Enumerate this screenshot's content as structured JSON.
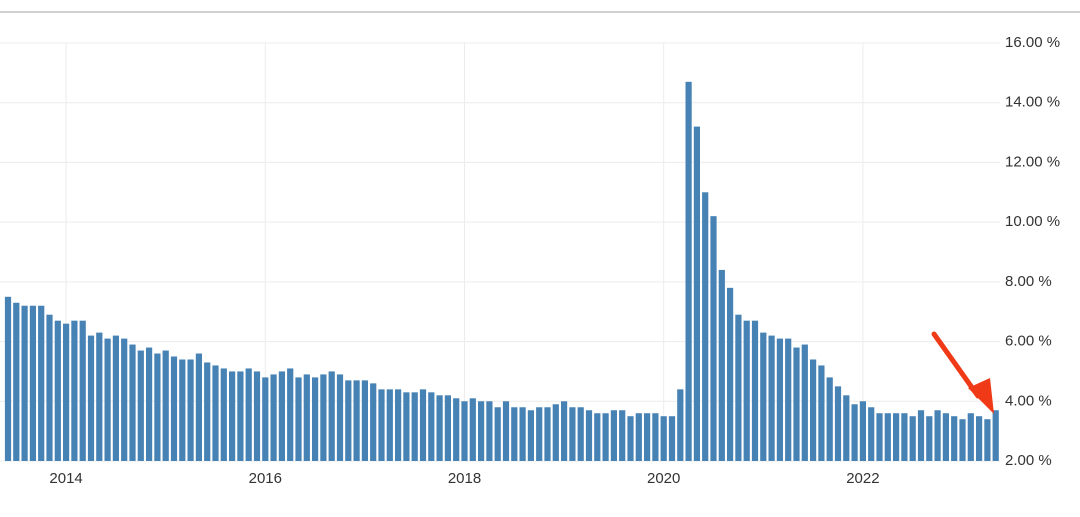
{
  "chart_data": {
    "type": "bar",
    "color": "#4682b4",
    "grid": true,
    "categories": [
      null,
      null,
      null,
      null,
      null,
      null,
      null,
      "2014",
      null,
      null,
      null,
      null,
      null,
      null,
      null,
      null,
      null,
      null,
      null,
      null,
      null,
      null,
      null,
      null,
      null,
      null,
      null,
      null,
      null,
      null,
      null,
      "2016",
      null,
      null,
      null,
      null,
      null,
      null,
      null,
      null,
      null,
      null,
      null,
      null,
      null,
      null,
      null,
      null,
      null,
      null,
      null,
      null,
      null,
      null,
      null,
      "2018",
      null,
      null,
      null,
      null,
      null,
      null,
      null,
      null,
      null,
      null,
      null,
      null,
      null,
      null,
      null,
      null,
      null,
      null,
      null,
      null,
      null,
      null,
      null,
      "2020",
      null,
      null,
      null,
      null,
      null,
      null,
      null,
      null,
      null,
      null,
      null,
      null,
      null,
      null,
      null,
      null,
      null,
      null,
      null,
      null,
      null,
      null,
      null,
      "2022",
      null,
      null,
      null,
      null,
      null,
      null,
      null,
      null,
      null,
      null,
      null,
      null,
      null,
      null,
      null,
      null
    ],
    "values": [
      7.5,
      7.3,
      7.2,
      7.2,
      7.2,
      6.9,
      6.7,
      6.6,
      6.7,
      6.7,
      6.2,
      6.3,
      6.1,
      6.2,
      6.1,
      5.9,
      5.7,
      5.8,
      5.6,
      5.7,
      5.5,
      5.4,
      5.4,
      5.6,
      5.3,
      5.2,
      5.1,
      5.0,
      5.0,
      5.1,
      5.0,
      4.8,
      4.9,
      5.0,
      5.1,
      4.8,
      4.9,
      4.8,
      4.9,
      5.0,
      4.9,
      4.7,
      4.7,
      4.7,
      4.6,
      4.4,
      4.4,
      4.4,
      4.3,
      4.3,
      4.4,
      4.3,
      4.2,
      4.2,
      4.1,
      4.0,
      4.1,
      4.0,
      4.0,
      3.8,
      4.0,
      3.8,
      3.8,
      3.7,
      3.8,
      3.8,
      3.9,
      4.0,
      3.8,
      3.8,
      3.7,
      3.6,
      3.6,
      3.7,
      3.7,
      3.5,
      3.6,
      3.6,
      3.6,
      3.5,
      3.5,
      4.4,
      14.7,
      13.2,
      11.0,
      10.2,
      8.4,
      7.8,
      6.9,
      6.7,
      6.7,
      6.3,
      6.2,
      6.1,
      6.1,
      5.8,
      5.9,
      5.4,
      5.2,
      4.8,
      4.5,
      4.2,
      3.9,
      4.0,
      3.8,
      3.6,
      3.6,
      3.6,
      3.6,
      3.5,
      3.7,
      3.5,
      3.7,
      3.6,
      3.5,
      3.4,
      3.6,
      3.5,
      3.4,
      3.7
    ],
    "ylim": [
      2,
      16
    ],
    "yticks": [
      {
        "value": 2,
        "label": "2.00 %"
      },
      {
        "value": 4,
        "label": "4.00 %"
      },
      {
        "value": 6,
        "label": "6.00 %"
      },
      {
        "value": 8,
        "label": "8.00 %"
      },
      {
        "value": 10,
        "label": "10.00 %"
      },
      {
        "value": 12,
        "label": "12.00 %"
      },
      {
        "value": 14,
        "label": "14.00 %"
      },
      {
        "value": 16,
        "label": "16.00 %"
      }
    ]
  }
}
